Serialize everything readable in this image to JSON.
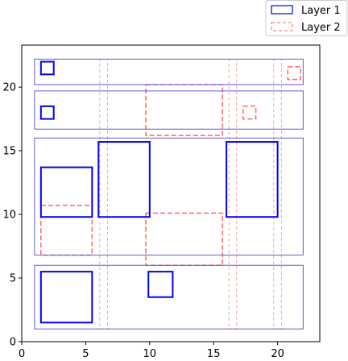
{
  "chart_data": {
    "type": "rectangles",
    "xlim": [
      0,
      23.3
    ],
    "ylim": [
      0,
      23.3
    ],
    "x_ticks": [
      0,
      5,
      10,
      15,
      20
    ],
    "y_ticks": [
      0,
      5,
      10,
      15,
      20
    ],
    "grid": false,
    "legend_position": "top-right",
    "series": [
      {
        "name": "Layer 1",
        "color_outer": "#6a5acd",
        "color_inner": "#0000ff",
        "style": "solid",
        "rects": [
          {
            "x0": 1.0,
            "y0": 1.0,
            "x1": 22.0,
            "y1": 6.0,
            "kind": "container"
          },
          {
            "x0": 1.0,
            "y0": 6.8,
            "x1": 22.0,
            "y1": 16.0,
            "kind": "container"
          },
          {
            "x0": 1.0,
            "y0": 16.7,
            "x1": 22.0,
            "y1": 19.7,
            "kind": "container"
          },
          {
            "x0": 1.0,
            "y0": 20.2,
            "x1": 22.0,
            "y1": 22.2,
            "kind": "container"
          },
          {
            "x0": 1.5,
            "y0": 1.5,
            "x1": 5.5,
            "y1": 5.5,
            "kind": "box"
          },
          {
            "x0": 1.5,
            "y0": 9.8,
            "x1": 5.5,
            "y1": 13.7,
            "kind": "box"
          },
          {
            "x0": 6.0,
            "y0": 9.8,
            "x1": 10.0,
            "y1": 15.7,
            "kind": "box"
          },
          {
            "x0": 16.0,
            "y0": 9.8,
            "x1": 20.0,
            "y1": 15.7,
            "kind": "box"
          },
          {
            "x0": 9.9,
            "y0": 3.5,
            "x1": 11.8,
            "y1": 5.5,
            "kind": "box"
          },
          {
            "x0": 1.5,
            "y0": 17.5,
            "x1": 2.5,
            "y1": 18.5,
            "kind": "box"
          },
          {
            "x0": 1.5,
            "y0": 21.0,
            "x1": 2.5,
            "y1": 22.0,
            "kind": "box"
          }
        ]
      },
      {
        "name": "Layer 2",
        "color": "#ff6666",
        "style": "dashed",
        "rects": [
          {
            "x0": 1.5,
            "y0": 6.8,
            "x1": 5.5,
            "y1": 10.7,
            "kind": "box"
          },
          {
            "x0": 9.7,
            "y0": 6.0,
            "x1": 15.7,
            "y1": 10.1,
            "kind": "box"
          },
          {
            "x0": 9.7,
            "y0": 16.2,
            "x1": 15.7,
            "y1": 20.2,
            "kind": "box"
          },
          {
            "x0": 17.3,
            "y0": 17.5,
            "x1": 18.3,
            "y1": 18.5,
            "kind": "box"
          },
          {
            "x0": 20.8,
            "y0": 20.6,
            "x1": 21.8,
            "y1": 21.6,
            "kind": "box"
          },
          {
            "x0": 6.1,
            "y0": 1.0,
            "x1": 6.7,
            "y1": 22.2,
            "kind": "rail"
          },
          {
            "x0": 16.2,
            "y0": 1.0,
            "x1": 16.8,
            "y1": 22.2,
            "kind": "rail"
          },
          {
            "x0": 19.7,
            "y0": 1.0,
            "x1": 20.3,
            "y1": 22.2,
            "kind": "rail"
          }
        ]
      }
    ]
  }
}
